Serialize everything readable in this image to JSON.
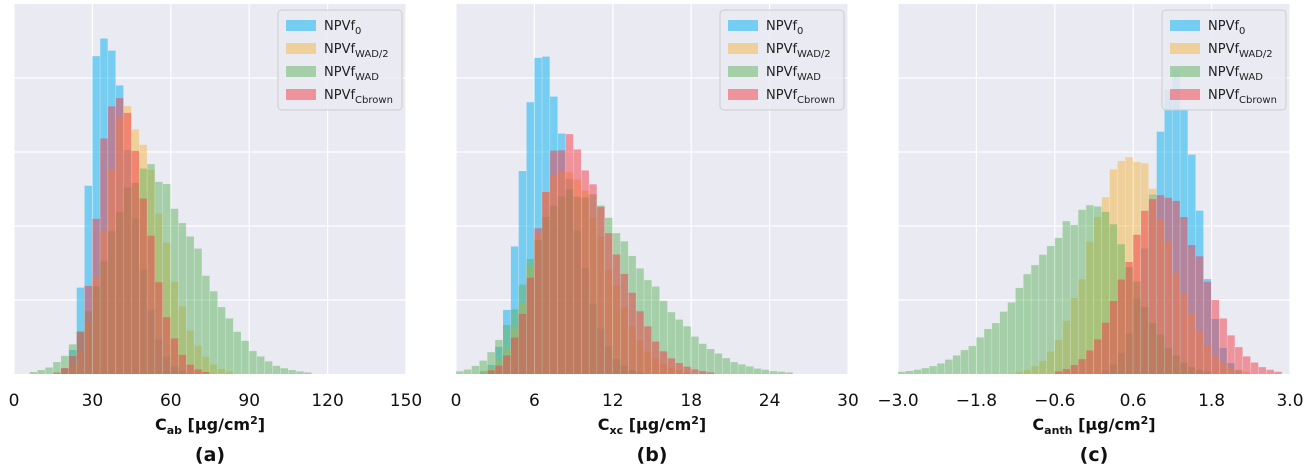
{
  "colors": {
    "background": "#eaeaf2",
    "grid": "#ffffff",
    "NPVf0": "#00b0f0",
    "NPVfWAD2": "#f5b541",
    "NPVfWAD": "#5fb45e",
    "NPVfCbrown": "#f23c46"
  },
  "chart_data": [
    {
      "type": "bar",
      "caption": "(a)",
      "xlabel": {
        "main": "C",
        "sub": "ab",
        "unit": " [µg/cm",
        "sup": "2",
        "end": "]"
      },
      "ylabel": "",
      "xlim": [
        0,
        150
      ],
      "xticks": [
        "0",
        "30",
        "60",
        "90",
        "120",
        "150"
      ],
      "grid": true,
      "legend_position": "top-right",
      "legend": [
        {
          "key": "NPVf0",
          "text": "NPVf",
          "sub": "0"
        },
        {
          "key": "NPVfWAD2",
          "text": "NPVf",
          "sub": "WAD/2"
        },
        {
          "key": "NPVfWAD",
          "text": "NPVf",
          "sub": "WAD"
        },
        {
          "key": "NPVfCbrown",
          "text": "NPVf",
          "sub": "Cbrown"
        }
      ],
      "series": [
        {
          "key": "NPVf0",
          "shape": "gauss",
          "mu": 34,
          "sl": 5,
          "sr": 10,
          "peak": 0.95
        },
        {
          "key": "NPVfWAD2",
          "shape": "gauss",
          "mu": 43,
          "sl": 8,
          "sr": 13,
          "peak": 0.7
        },
        {
          "key": "NPVfWAD",
          "shape": "gauss",
          "mu": 50,
          "sl": 14,
          "sr": 20,
          "peak": 0.55
        },
        {
          "key": "NPVfCbrown",
          "shape": "gauss",
          "mu": 39,
          "sl": 7,
          "sr": 11,
          "peak": 0.76
        }
      ]
    },
    {
      "type": "bar",
      "caption": "(b)",
      "xlabel": {
        "main": "C",
        "sub": "xc",
        "unit": " [µg/cm",
        "sup": "2",
        "end": "]"
      },
      "ylabel": "",
      "xlim": [
        0,
        30
      ],
      "xticks": [
        "0",
        "6",
        "12",
        "18",
        "24",
        "30"
      ],
      "grid": true,
      "legend_position": "top-right",
      "legend": [
        {
          "key": "NPVf0",
          "text": "NPVf",
          "sub": "0"
        },
        {
          "key": "NPVfWAD2",
          "text": "NPVf",
          "sub": "WAD/2"
        },
        {
          "key": "NPVfWAD",
          "text": "NPVf",
          "sub": "WAD"
        },
        {
          "key": "NPVfCbrown",
          "text": "NPVf",
          "sub": "Cbrown"
        }
      ],
      "series": [
        {
          "key": "NPVf0",
          "shape": "gauss",
          "mu": 6.4,
          "sl": 1.4,
          "sr": 2.4,
          "peak": 0.84
        },
        {
          "key": "NPVfWAD2",
          "shape": "gauss",
          "mu": 8.0,
          "sl": 2.0,
          "sr": 3.2,
          "peak": 0.57
        },
        {
          "key": "NPVfWAD",
          "shape": "gauss",
          "mu": 8.5,
          "sl": 2.8,
          "sr": 5.5,
          "peak": 0.5
        },
        {
          "key": "NPVfCbrown",
          "shape": "gauss",
          "mu": 8.2,
          "sl": 1.9,
          "sr": 3.6,
          "peak": 0.63
        }
      ]
    },
    {
      "type": "bar",
      "caption": "(c)",
      "xlabel": {
        "main": "C",
        "sub": "anth",
        "unit": " [µg/cm",
        "sup": "2",
        "end": "]"
      },
      "ylabel": "",
      "xlim": [
        -3.0,
        3.0
      ],
      "xticks": [
        "−3.0",
        "−1.8",
        "−0.6",
        "0.6",
        "1.8",
        "3.0"
      ],
      "grid": true,
      "legend_position": "top-right",
      "legend": [
        {
          "key": "NPVf0",
          "text": "NPVf",
          "sub": "0"
        },
        {
          "key": "NPVfWAD2",
          "text": "NPVf",
          "sub": "WAD/2"
        },
        {
          "key": "NPVfWAD",
          "text": "NPVf",
          "sub": "WAD"
        },
        {
          "key": "NPVfCbrown",
          "text": "NPVf",
          "sub": "Cbrown"
        }
      ],
      "series": [
        {
          "key": "NPVf0",
          "shape": "gauss",
          "mu": 1.25,
          "sl": 0.36,
          "sr": 0.33,
          "peak": 0.8
        },
        {
          "key": "NPVfWAD2",
          "shape": "gauss",
          "mu": 0.52,
          "sl": 0.55,
          "sr": 0.6,
          "peak": 0.6
        },
        {
          "key": "NPVfWAD",
          "shape": "gauss",
          "mu": 0.0,
          "sl": 1.0,
          "sr": 0.6,
          "peak": 0.44
        },
        {
          "key": "NPVfCbrown",
          "shape": "gauss",
          "mu": 1.05,
          "sl": 0.55,
          "sr": 0.6,
          "peak": 0.48
        }
      ]
    }
  ]
}
